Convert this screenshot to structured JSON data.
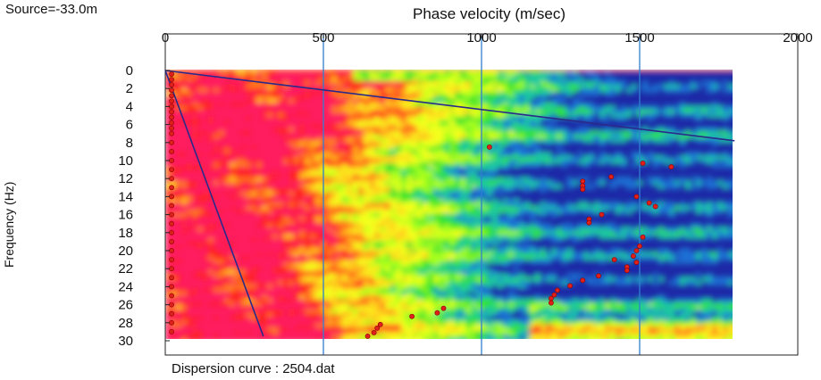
{
  "header": {
    "source_label": "Source=-33.0m",
    "footer_label": "Dispersion curve : 2504.dat"
  },
  "chart_data": {
    "type": "heatmap",
    "xlabel": "Phase velocity (m/sec)",
    "ylabel": "Frequency (Hz)",
    "xlim": [
      0,
      2000
    ],
    "ylim": [
      0,
      30
    ],
    "y_inverted": true,
    "x_ticks": [
      0,
      500,
      1000,
      1500,
      2000
    ],
    "y_ticks": [
      0,
      2,
      4,
      6,
      8,
      10,
      12,
      14,
      16,
      18,
      20,
      22,
      24,
      26,
      28,
      30
    ],
    "velocity_range_plotted": [
      0,
      1800
    ],
    "colormap": [
      "#ff1a5e",
      "#ff2222",
      "#ff7a1a",
      "#ffd21a",
      "#f4ff1a",
      "#a6ff1a",
      "#2fe22f",
      "#1ec8a0",
      "#1e6fd6",
      "#1a2aa8"
    ],
    "grid_color": "#2f7fd0",
    "marker_color": "#e0201a",
    "lines": [
      {
        "name": "",
        "color": "#2a2a8a",
        "points": [
          [
            0,
            0
          ],
          [
            1800,
            7.8
          ]
        ]
      },
      {
        "name": "",
        "color": "#2a2a8a",
        "points": [
          [
            0,
            0
          ],
          [
            310,
            29.5
          ]
        ]
      }
    ],
    "picked_points": [
      [
        20,
        0.4
      ],
      [
        20,
        1.0
      ],
      [
        20,
        1.6
      ],
      [
        20,
        2.2
      ],
      [
        20,
        2.8
      ],
      [
        20,
        3.4
      ],
      [
        20,
        4.0
      ],
      [
        20,
        4.6
      ],
      [
        20,
        5.2
      ],
      [
        20,
        5.8
      ],
      [
        20,
        6.4
      ],
      [
        20,
        7.0
      ],
      [
        20,
        8.0
      ],
      [
        20,
        9.0
      ],
      [
        20,
        10.0
      ],
      [
        20,
        11.0
      ],
      [
        20,
        12.0
      ],
      [
        20,
        13.0
      ],
      [
        20,
        14.0
      ],
      [
        20,
        15.0
      ],
      [
        20,
        16.0
      ],
      [
        20,
        17.0
      ],
      [
        20,
        18.0
      ],
      [
        20,
        19.0
      ],
      [
        20,
        20.0
      ],
      [
        20,
        21.0
      ],
      [
        20,
        22.0
      ],
      [
        20,
        23.0
      ],
      [
        20,
        24.0
      ],
      [
        20,
        25.0
      ],
      [
        20,
        26.0
      ],
      [
        20,
        27.0
      ],
      [
        20,
        28.0
      ],
      [
        20,
        29.0
      ],
      [
        1025,
        8.5
      ],
      [
        1510,
        10.3
      ],
      [
        1600,
        10.7
      ],
      [
        1410,
        11.8
      ],
      [
        1320,
        12.3
      ],
      [
        1320,
        12.8
      ],
      [
        1320,
        13.2
      ],
      [
        1490,
        14.0
      ],
      [
        1530,
        14.7
      ],
      [
        1550,
        15.1
      ],
      [
        1380,
        16.0
      ],
      [
        1340,
        16.5
      ],
      [
        1340,
        16.9
      ],
      [
        1510,
        18.5
      ],
      [
        1500,
        19.5
      ],
      [
        1490,
        20.0
      ],
      [
        1480,
        20.6
      ],
      [
        1420,
        21.0
      ],
      [
        1490,
        21.3
      ],
      [
        1460,
        21.8
      ],
      [
        1460,
        22.2
      ],
      [
        1370,
        22.8
      ],
      [
        1320,
        23.3
      ],
      [
        1280,
        23.9
      ],
      [
        1240,
        24.4
      ],
      [
        1230,
        24.9
      ],
      [
        1220,
        25.3
      ],
      [
        1220,
        25.8
      ],
      [
        880,
        26.4
      ],
      [
        860,
        26.9
      ],
      [
        780,
        27.3
      ],
      [
        680,
        28.2
      ],
      [
        670,
        28.6
      ],
      [
        660,
        29.1
      ],
      [
        640,
        29.5
      ]
    ]
  }
}
